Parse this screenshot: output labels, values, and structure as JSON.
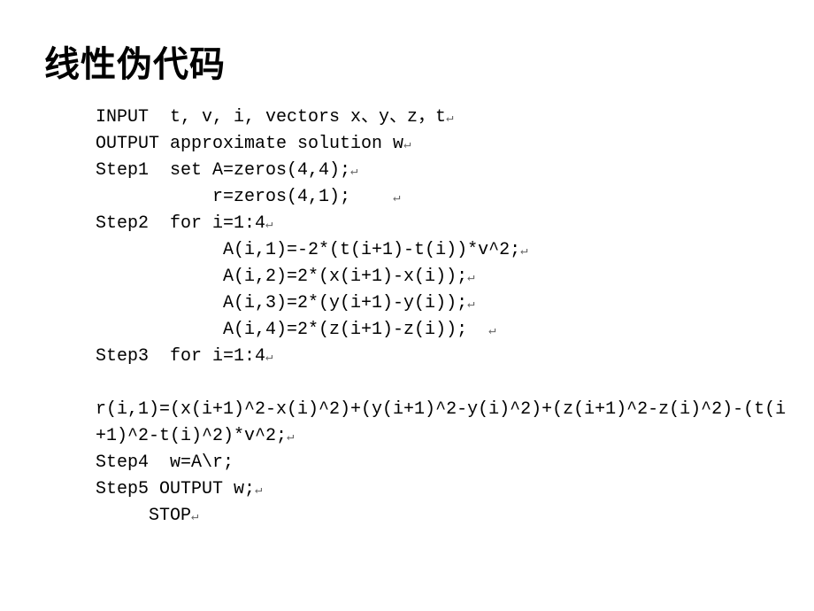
{
  "slide": {
    "title": "线性伪代码",
    "title_fontsize": 40,
    "title_fontweight": "900",
    "title_color": "#000000",
    "body_fontsize": 20,
    "body_color": "#000000",
    "background_color": "#ffffff",
    "return_symbol": "↵",
    "lines": [
      {
        "text": "INPUT  t, v, i, vectors x、y、z，t",
        "trailing_return": true,
        "indent": 0
      },
      {
        "text": "OUTPUT approximate solution w",
        "trailing_return": true,
        "indent": 0
      },
      {
        "text": "Step1  set A=zeros(4,4);",
        "trailing_return": true,
        "indent": 0
      },
      {
        "text": "           r=zeros(4,1);    ",
        "trailing_return": true,
        "indent": 0
      },
      {
        "text": "Step2  for i=1:4",
        "trailing_return": true,
        "indent": 0
      },
      {
        "text": "            A(i,1)=-2*(t(i+1)-t(i))*v^2;",
        "trailing_return": true,
        "indent": 0
      },
      {
        "text": "            A(i,2)=2*(x(i+1)-x(i));",
        "trailing_return": true,
        "indent": 0
      },
      {
        "text": "            A(i,3)=2*(y(i+1)-y(i));",
        "trailing_return": true,
        "indent": 0
      },
      {
        "text": "            A(i,4)=2*(z(i+1)-z(i));  ",
        "trailing_return": true,
        "indent": 0
      },
      {
        "text": "Step3  for i=1:4",
        "trailing_return": true,
        "indent": 0
      },
      {
        "text": "",
        "trailing_return": false,
        "indent": 0,
        "blank": true
      },
      {
        "text": "r(i,1)=(x(i+1)^2-x(i)^2)+(y(i+1)^2-y(i)^2)+(z(i+1)^2-z(i)^2)-(t(i",
        "trailing_return": false,
        "indent": 0
      },
      {
        "text": "+1)^2-t(i)^2)*v^2;",
        "trailing_return": true,
        "indent": 0
      },
      {
        "text": "Step4  w=A\\r;",
        "trailing_return": false,
        "indent": 0
      },
      {
        "text": "Step5 OUTPUT w;",
        "trailing_return": true,
        "indent": 0
      },
      {
        "text": "     STOP",
        "trailing_return": true,
        "indent": 0
      }
    ]
  }
}
